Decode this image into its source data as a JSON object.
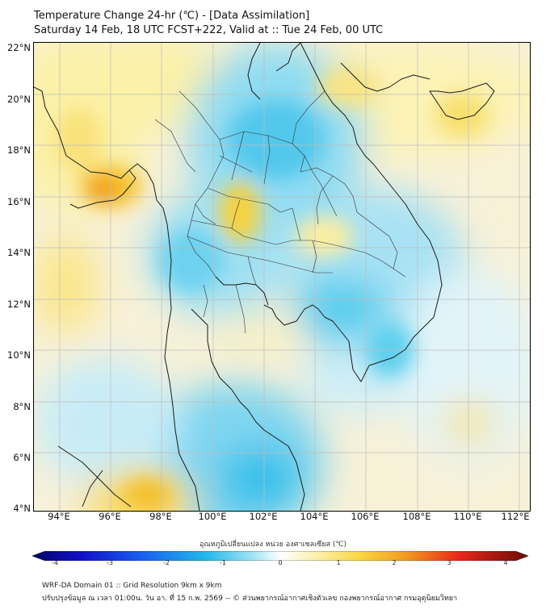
{
  "title": {
    "line1": "Temperature Change 24-hr (℃) - [Data Assimilation]",
    "line2": "Saturday 14 Feb, 18 UTC FCST+222, Valid at :: Tue 24 Feb, 00 UTC"
  },
  "axes": {
    "lat_labels": [
      "22°N",
      "20°N",
      "18°N",
      "16°N",
      "14°N",
      "12°N",
      "10°N",
      "8°N",
      "6°N",
      "4°N"
    ],
    "lon_labels": [
      "94°E",
      "96°E",
      "98°E",
      "100°E",
      "102°E",
      "104°E",
      "106°E",
      "108°E",
      "110°E",
      "112°E"
    ]
  },
  "colorbar": {
    "title": "อุณหภูมิเปลี่ยนแปลง หน่วย องศาเซลเซียส (℃)",
    "ticks": [
      "-4",
      "-3",
      "-2",
      "-1",
      "0",
      "1",
      "2",
      "3",
      "4"
    ]
  },
  "footer": {
    "line1": "WRF-DA Domain 01 :: Grid Resolution 9km x 9km",
    "line2": "ปรับปรุงข้อมูล ณ เวลา 01:00น. วัน อา. ที่ 15 ก.พ. 2569 -- © ส่วนพยากรณ์อากาศเชิงตัวเลข กองพยากรณ์อากาศ กรมอุตุนิยมวิทยา"
  },
  "colors": {
    "warm_light": "#fbf3b8",
    "warm": "#f8d840",
    "hot": "#f08020",
    "cool_light": "#d6f0f8",
    "cool": "#7fd8f0",
    "cold": "#2bbfe8",
    "border": "#1a1a1a"
  }
}
